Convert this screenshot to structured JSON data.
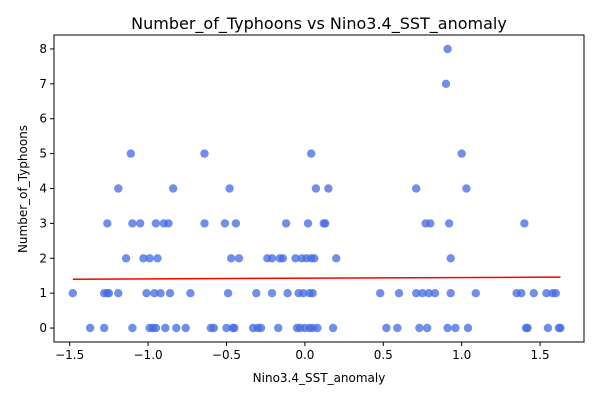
{
  "chart_data": {
    "type": "scatter",
    "title": "Number_of_Typhoons vs Nino3.4_SST_anomaly",
    "xlabel": "Nino3.4_SST_anomaly",
    "ylabel": "Number_of_Typhoons",
    "xlim": [
      -1.6,
      1.78
    ],
    "ylim": [
      -0.4,
      8.4
    ],
    "xticks": [
      -1.5,
      -1.0,
      -0.5,
      0.0,
      0.5,
      1.0,
      1.5
    ],
    "xtick_labels": [
      "−1.5",
      "−1.0",
      "−0.5",
      "0.0",
      "0.5",
      "1.0",
      "1.5"
    ],
    "yticks": [
      0,
      1,
      2,
      3,
      4,
      5,
      6,
      7,
      8
    ],
    "ytick_labels": [
      "0",
      "1",
      "2",
      "3",
      "4",
      "5",
      "6",
      "7",
      "8"
    ],
    "grid": false,
    "legend": "none",
    "points_color": "#4169e1",
    "trend_color": "#ff0000",
    "points": [
      [
        -1.48,
        1
      ],
      [
        -1.37,
        0
      ],
      [
        -1.28,
        0
      ],
      [
        -1.28,
        1
      ],
      [
        -1.26,
        1
      ],
      [
        -1.25,
        1
      ],
      [
        -1.26,
        3
      ],
      [
        -1.19,
        4
      ],
      [
        -1.19,
        1
      ],
      [
        -1.14,
        2
      ],
      [
        -1.11,
        5
      ],
      [
        -1.1,
        3
      ],
      [
        -1.1,
        0
      ],
      [
        -1.05,
        3
      ],
      [
        -1.03,
        2
      ],
      [
        -1.01,
        1
      ],
      [
        -0.99,
        2
      ],
      [
        -0.99,
        0
      ],
      [
        -0.97,
        0
      ],
      [
        -0.96,
        1
      ],
      [
        -0.95,
        3
      ],
      [
        -0.95,
        0
      ],
      [
        -0.94,
        2
      ],
      [
        -0.92,
        1
      ],
      [
        -0.9,
        3
      ],
      [
        -0.89,
        0
      ],
      [
        -0.87,
        3
      ],
      [
        -0.86,
        1
      ],
      [
        -0.84,
        4
      ],
      [
        -0.82,
        0
      ],
      [
        -0.76,
        0
      ],
      [
        -0.73,
        1
      ],
      [
        -0.64,
        5
      ],
      [
        -0.64,
        3
      ],
      [
        -0.6,
        0
      ],
      [
        -0.58,
        0
      ],
      [
        -0.51,
        3
      ],
      [
        -0.5,
        0
      ],
      [
        -0.49,
        1
      ],
      [
        -0.48,
        4
      ],
      [
        -0.47,
        2
      ],
      [
        -0.46,
        0
      ],
      [
        -0.45,
        0
      ],
      [
        -0.44,
        3
      ],
      [
        -0.42,
        2
      ],
      [
        -0.33,
        0
      ],
      [
        -0.31,
        1
      ],
      [
        -0.3,
        0
      ],
      [
        -0.28,
        0
      ],
      [
        -0.24,
        2
      ],
      [
        -0.21,
        1
      ],
      [
        -0.21,
        2
      ],
      [
        -0.17,
        0
      ],
      [
        -0.16,
        2
      ],
      [
        -0.14,
        2
      ],
      [
        -0.12,
        3
      ],
      [
        -0.11,
        1
      ],
      [
        -0.06,
        2
      ],
      [
        -0.05,
        0
      ],
      [
        -0.04,
        1
      ],
      [
        -0.03,
        0
      ],
      [
        -0.02,
        2
      ],
      [
        -0.01,
        1
      ],
      [
        0.0,
        0
      ],
      [
        0.01,
        2
      ],
      [
        0.02,
        3
      ],
      [
        0.03,
        0
      ],
      [
        0.03,
        1
      ],
      [
        0.04,
        2
      ],
      [
        0.04,
        5
      ],
      [
        0.05,
        0
      ],
      [
        0.05,
        1
      ],
      [
        0.06,
        2
      ],
      [
        0.07,
        4
      ],
      [
        0.08,
        0
      ],
      [
        0.12,
        3
      ],
      [
        0.13,
        3
      ],
      [
        0.15,
        4
      ],
      [
        0.18,
        0
      ],
      [
        0.2,
        2
      ],
      [
        0.48,
        1
      ],
      [
        0.52,
        0
      ],
      [
        0.59,
        0
      ],
      [
        0.6,
        1
      ],
      [
        0.71,
        4
      ],
      [
        0.71,
        1
      ],
      [
        0.73,
        0
      ],
      [
        0.75,
        1
      ],
      [
        0.77,
        3
      ],
      [
        0.78,
        0
      ],
      [
        0.79,
        1
      ],
      [
        0.8,
        3
      ],
      [
        0.83,
        1
      ],
      [
        0.9,
        7
      ],
      [
        0.91,
        8
      ],
      [
        0.91,
        0
      ],
      [
        0.92,
        3
      ],
      [
        0.93,
        2
      ],
      [
        0.93,
        1
      ],
      [
        0.96,
        0
      ],
      [
        1.0,
        5
      ],
      [
        1.03,
        4
      ],
      [
        1.04,
        0
      ],
      [
        1.09,
        1
      ],
      [
        1.35,
        1
      ],
      [
        1.38,
        1
      ],
      [
        1.4,
        3
      ],
      [
        1.41,
        0
      ],
      [
        1.42,
        0
      ],
      [
        1.46,
        1
      ],
      [
        1.54,
        1
      ],
      [
        1.55,
        0
      ],
      [
        1.58,
        1
      ],
      [
        1.6,
        1
      ],
      [
        1.62,
        0
      ],
      [
        1.63,
        0
      ]
    ],
    "trend_line": {
      "x": [
        -1.48,
        1.63
      ],
      "y": [
        1.4,
        1.46
      ]
    }
  }
}
